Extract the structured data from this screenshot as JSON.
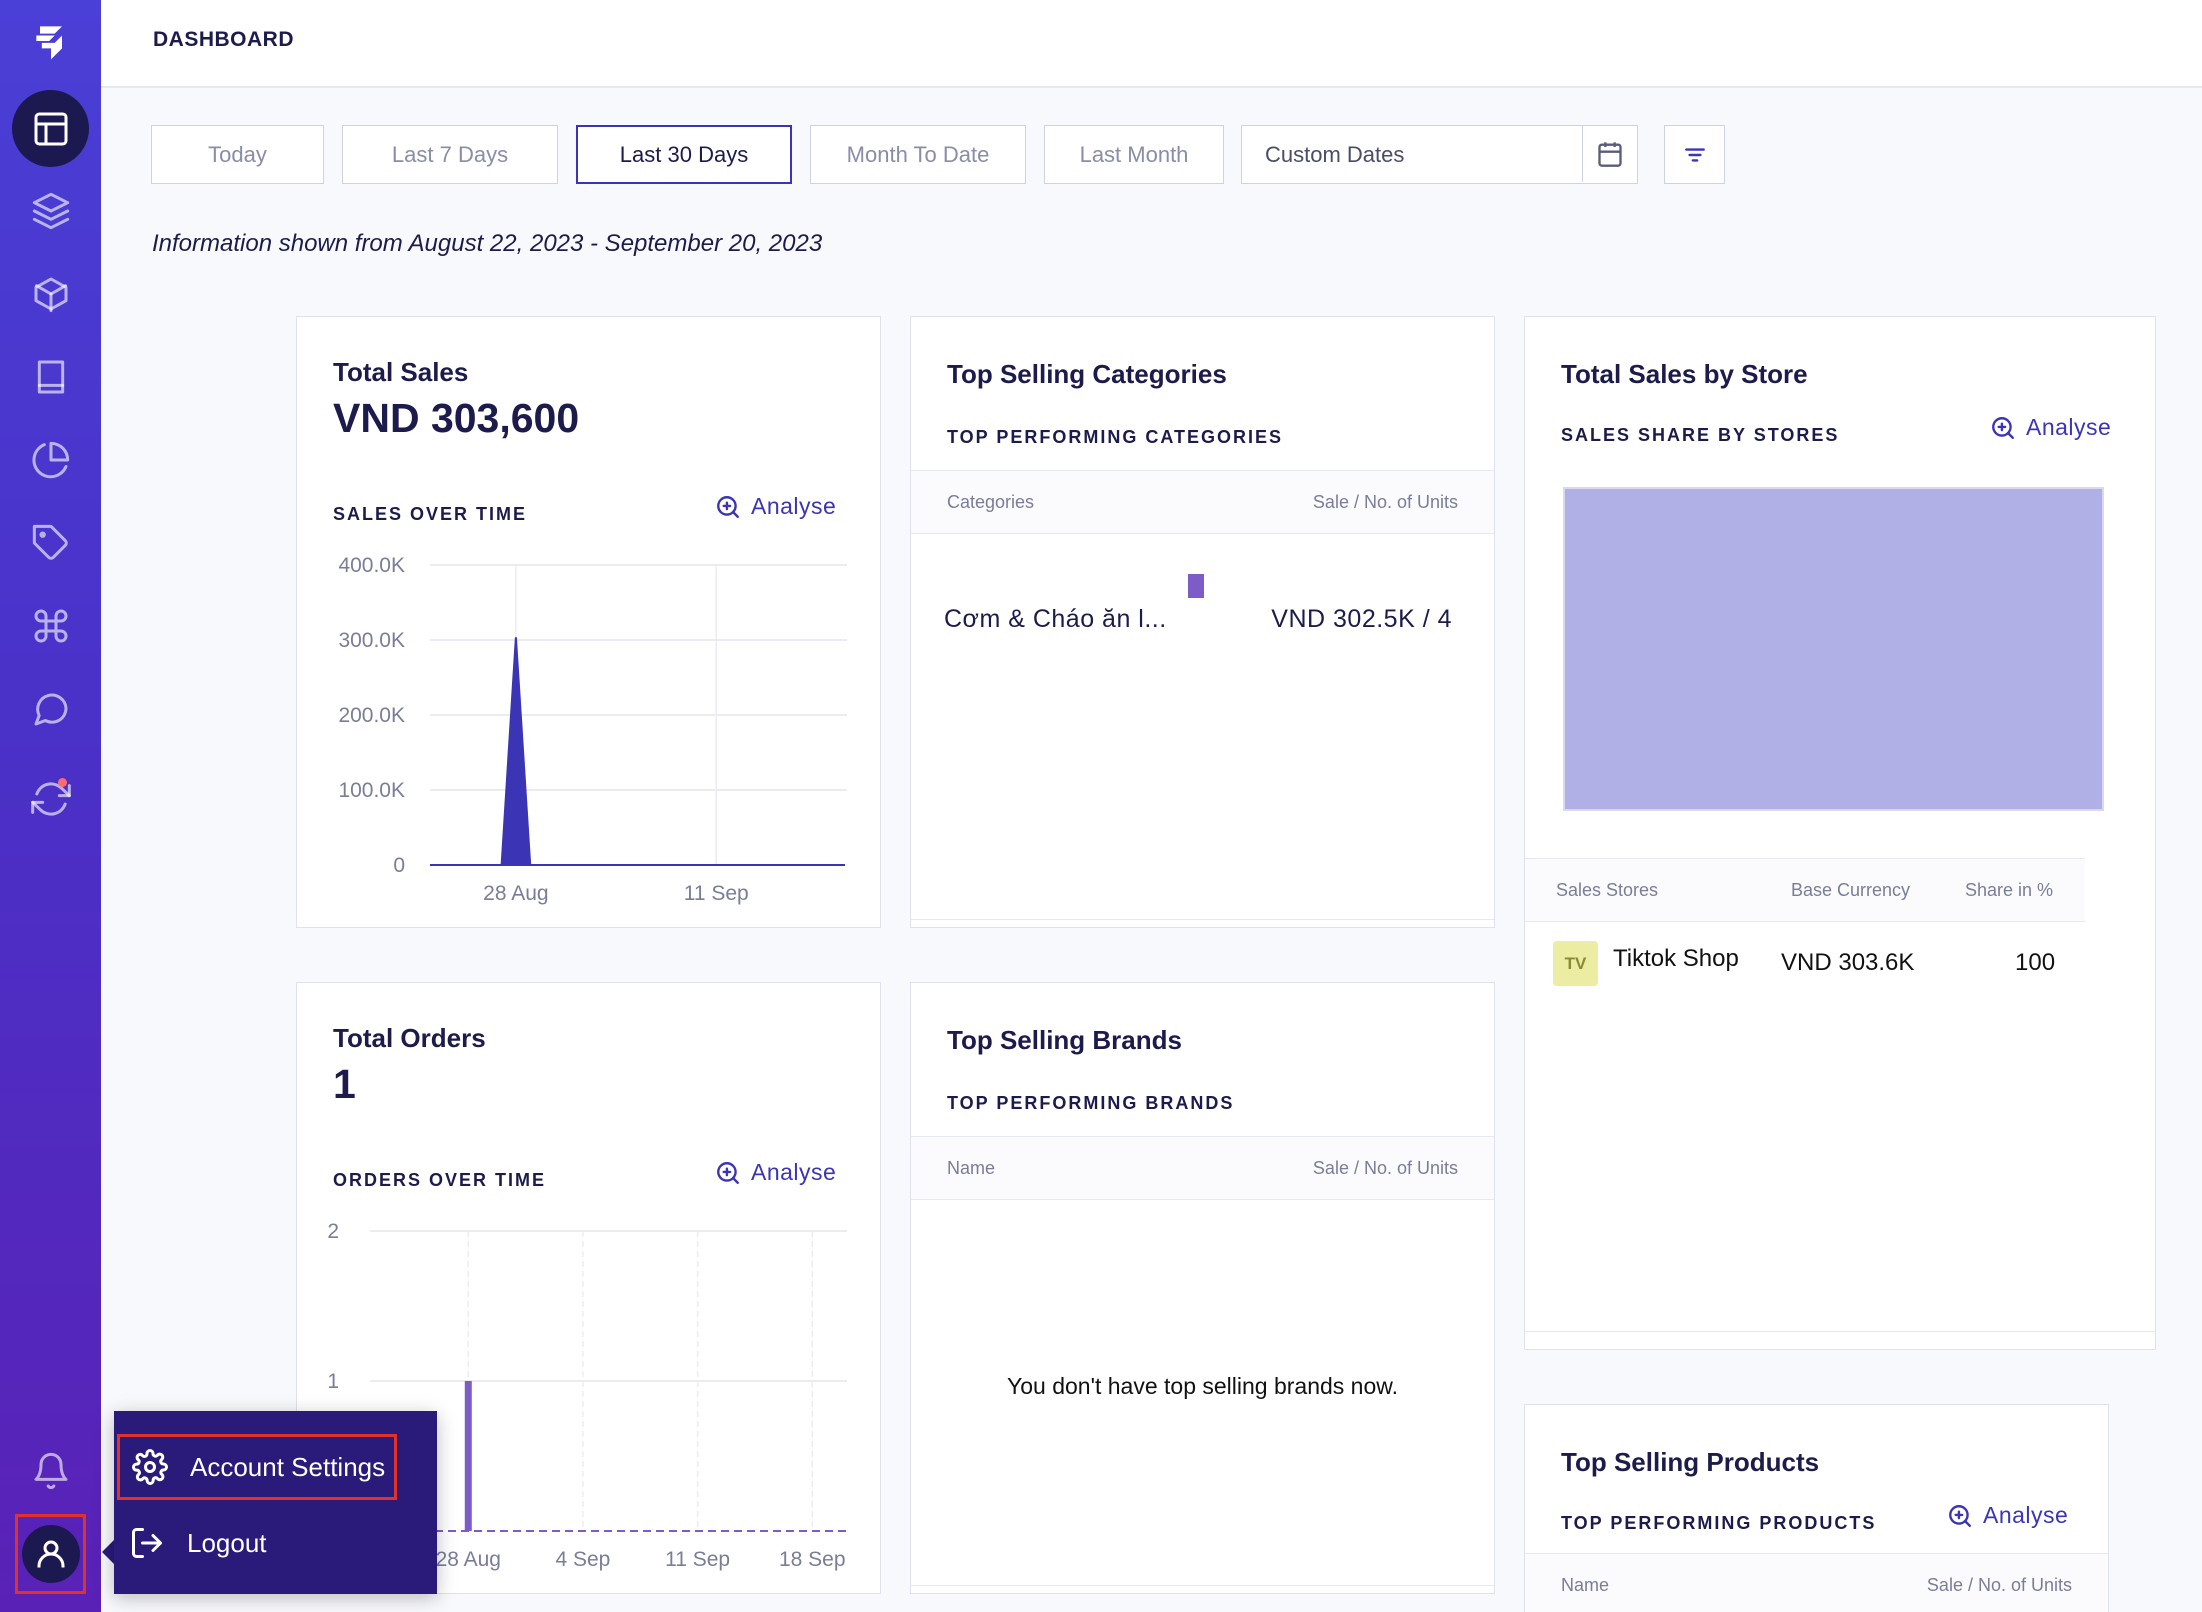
{
  "header": {
    "title": "DASHBOARD"
  },
  "sidebar": {
    "items": [
      {
        "icon": "logo-icon"
      },
      {
        "icon": "layout-icon",
        "active": true
      },
      {
        "icon": "layers-icon"
      },
      {
        "icon": "package-icon"
      },
      {
        "icon": "book-icon"
      },
      {
        "icon": "pie-chart-icon"
      },
      {
        "icon": "tag-icon"
      },
      {
        "icon": "command-icon"
      },
      {
        "icon": "chat-icon"
      },
      {
        "icon": "sync-icon"
      },
      {
        "icon": "bell-icon"
      },
      {
        "icon": "user-icon"
      }
    ]
  },
  "filters": {
    "options": [
      "Today",
      "Last 7 Days",
      "Last 30 Days",
      "Month To Date",
      "Last Month"
    ],
    "selected": "Last 30 Days",
    "custom_label": "Custom Dates"
  },
  "info_text": "Information shown from August 22, 2023 - September 20, 2023",
  "total_sales": {
    "title": "Total Sales",
    "value": "VND  303,600",
    "kicker": "SALES OVER TIME",
    "analyse": "Analyse"
  },
  "total_orders": {
    "title": "Total Orders",
    "value": "1",
    "kicker": "ORDERS OVER TIME",
    "analyse": "Analyse"
  },
  "top_categories": {
    "title": "Top Selling Categories",
    "kicker": "TOP PERFORMING CATEGORIES",
    "col1": "Categories",
    "col2": "Sale / No. of Units",
    "row_name": "Cơm & Cháo ăn l...",
    "row_value": "VND 302.5K / 4"
  },
  "top_brands": {
    "title": "Top Selling Brands",
    "kicker": "TOP PERFORMING BRANDS",
    "col1": "Name",
    "col2": "Sale / No. of Units",
    "empty": "You don't have top selling brands now."
  },
  "sales_by_store": {
    "title": "Total Sales by Store",
    "kicker": "SALES SHARE BY STORES",
    "analyse": "Analyse",
    "col1": "Sales Stores",
    "col2": "Base Currency",
    "col3": "Share in %",
    "row_badge": "TV",
    "row_store": "Tiktok Shop",
    "row_currency": "VND 303.6K",
    "row_share": "100"
  },
  "top_products": {
    "title": "Top Selling Products",
    "kicker": "TOP PERFORMING PRODUCTS",
    "analyse": "Analyse",
    "col1": "Name",
    "col2": "Sale / No. of Units"
  },
  "menu": {
    "account_settings": "Account Settings",
    "logout": "Logout"
  },
  "colors": {
    "accent": "#3b35b6",
    "sidebar": "#4a31c8",
    "chart_fill": "#3b35b6",
    "store_fill": "#b0b0e6",
    "bar": "#7d5cc8"
  },
  "chart_data": [
    {
      "type": "area",
      "title": "SALES OVER TIME",
      "x_ticks": [
        "28 Aug",
        "11 Sep"
      ],
      "y_ticks": [
        "400.0K",
        "300.0K",
        "200.0K",
        "100.0K",
        "0"
      ],
      "ylim": [
        0,
        400000
      ],
      "series": [
        {
          "values": [
            {
              "x": "2023-08-22",
              "y": 0
            },
            {
              "x": "2023-08-27",
              "y": 0
            },
            {
              "x": "2023-08-28",
              "y": 303600
            },
            {
              "x": "2023-08-29",
              "y": 0
            },
            {
              "x": "2023-09-20",
              "y": 0
            }
          ]
        }
      ]
    },
    {
      "type": "bar",
      "title": "ORDERS OVER TIME",
      "x_ticks": [
        "28 Aug",
        "4 Sep",
        "11 Sep",
        "18 Sep"
      ],
      "y_ticks": [
        "2",
        "1"
      ],
      "ylim": [
        0,
        2
      ],
      "series": [
        {
          "values": [
            {
              "x": "2023-08-28",
              "y": 1
            }
          ]
        }
      ]
    },
    {
      "type": "pie",
      "title": "SALES SHARE BY STORES",
      "categories": [
        "Tiktok Shop"
      ],
      "values": [
        100
      ]
    }
  ]
}
